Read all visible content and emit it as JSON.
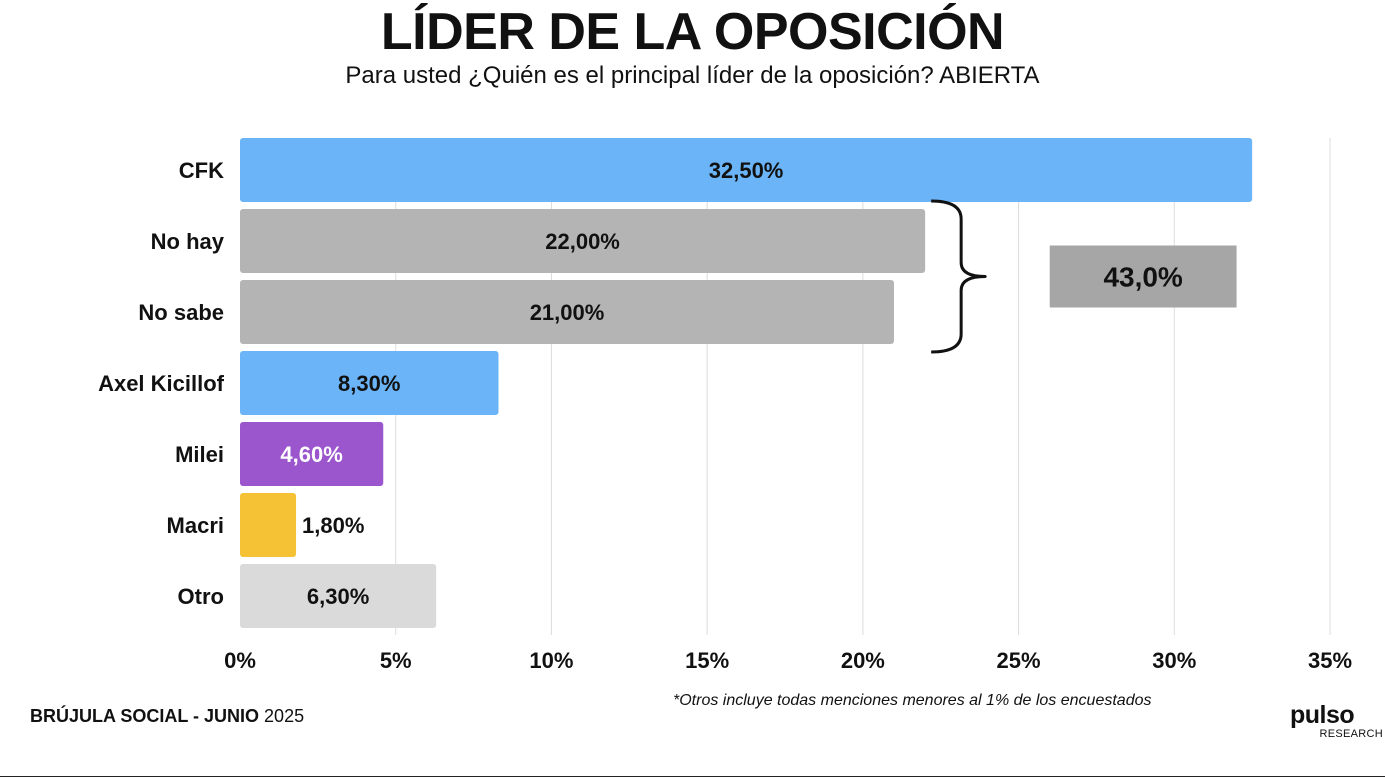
{
  "header": {
    "title": "LÍDER DE LA OPOSICIÓN",
    "subtitle": "Para usted ¿Quién es el principal líder de la oposición? ABIERTA"
  },
  "chart_data": {
    "type": "bar",
    "orientation": "horizontal",
    "categories": [
      "CFK",
      "No hay",
      "No sabe",
      "Axel Kicillof",
      "Milei",
      "Macri",
      "Otro"
    ],
    "values": [
      32.5,
      22.0,
      21.0,
      8.3,
      4.6,
      1.8,
      6.3
    ],
    "data_labels": [
      "32,50%",
      "22,00%",
      "21,00%",
      "8,30%",
      "4,60%",
      "1,80%",
      "6,30%"
    ],
    "colors": [
      "#6ab4f7",
      "#b4b4b4",
      "#b4b4b4",
      "#6ab4f7",
      "#9b55cd",
      "#f4c234",
      "#dadada"
    ],
    "label_colors": [
      "#111111",
      "#111111",
      "#111111",
      "#111111",
      "#ffffff",
      "#111111",
      "#111111"
    ],
    "xlim": [
      0,
      35
    ],
    "x_ticks": [
      0,
      5,
      10,
      15,
      20,
      25,
      30,
      35
    ],
    "x_tick_labels": [
      "0%",
      "5%",
      "10%",
      "15%",
      "20%",
      "25%",
      "30%",
      "35%"
    ],
    "grid": true,
    "annotation": {
      "brackets_categories": [
        "No hay",
        "No sabe"
      ],
      "label": "43,0%",
      "box_color": "#a6a6a6"
    }
  },
  "footer": {
    "source_bold": "BRÚJULA SOCIAL - JUNIO",
    "source_year": "2025",
    "note": "*Otros incluye todas menciones menores al 1% de los encuestados",
    "logo_text": "pulso",
    "logo_subtext": "RESEARCH"
  }
}
